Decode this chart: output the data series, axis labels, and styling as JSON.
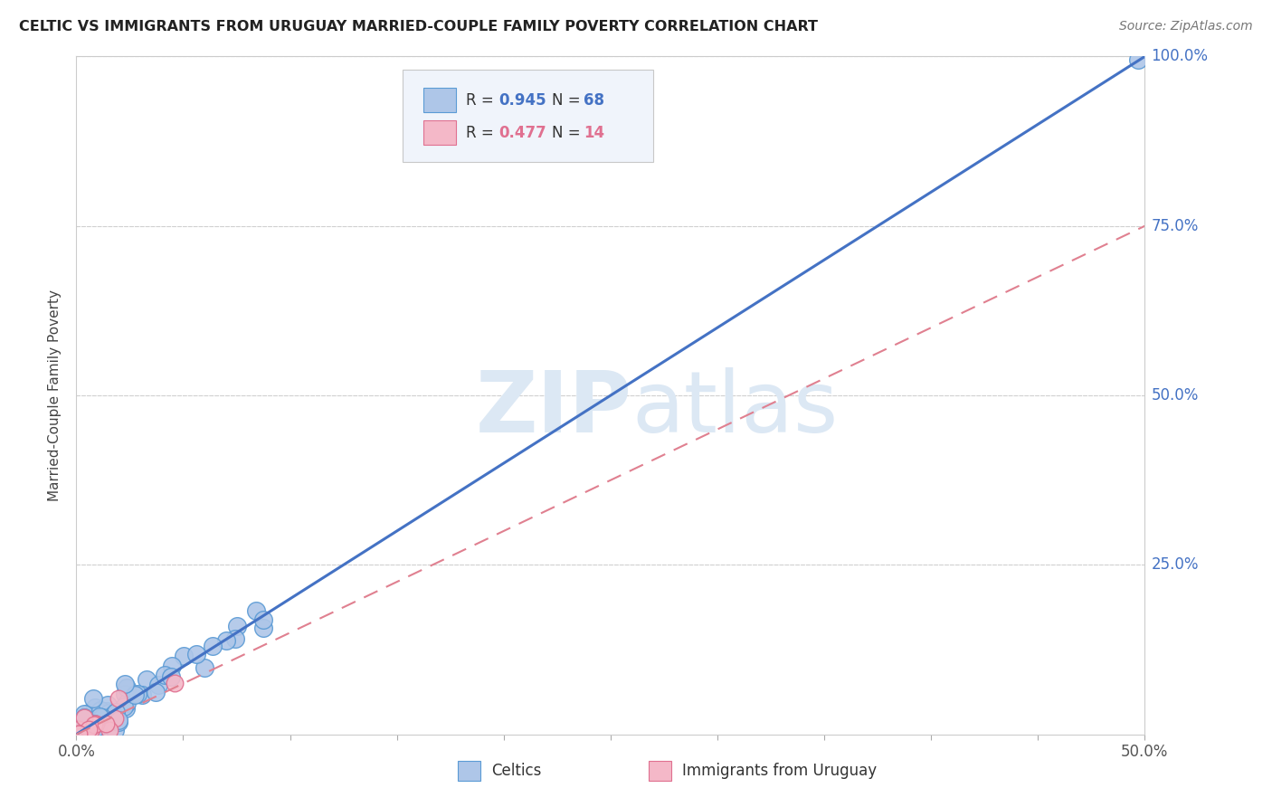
{
  "title": "CELTIC VS IMMIGRANTS FROM URUGUAY MARRIED-COUPLE FAMILY POVERTY CORRELATION CHART",
  "source": "Source: ZipAtlas.com",
  "ylabel": "Married-Couple Family Poverty",
  "xlim": [
    0.0,
    0.5
  ],
  "ylim": [
    0.0,
    1.0
  ],
  "xticks": [
    0.0,
    0.05,
    0.1,
    0.15,
    0.2,
    0.25,
    0.3,
    0.35,
    0.4,
    0.45,
    0.5
  ],
  "xticklabels": [
    "0.0%",
    "",
    "",
    "",
    "",
    "",
    "",
    "",
    "",
    "",
    "50.0%"
  ],
  "yticks": [
    0.0,
    0.25,
    0.5,
    0.75,
    1.0
  ],
  "yticklabels": [
    "",
    "25.0%",
    "50.0%",
    "75.0%",
    "100.0%"
  ],
  "celtic_R": 0.945,
  "celtic_N": 68,
  "uruguay_R": 0.477,
  "uruguay_N": 14,
  "celtic_color": "#aec6e8",
  "celtic_edge_color": "#5b9bd5",
  "uruguay_color": "#f4b8c8",
  "uruguay_edge_color": "#e07090",
  "celtic_line_color": "#4472c4",
  "uruguay_line_color": "#e08090",
  "watermark_color": "#dce8f4",
  "grid_color": "#d0d0d0",
  "background_color": "#ffffff",
  "legend_box_color": "#f0f4fb",
  "legend_border_color": "#c8c8c8",
  "number_color_blue": "#4472c4",
  "number_color_pink": "#e07090",
  "label_color": "#555555",
  "title_color": "#222222",
  "ytick_color": "#4472c4"
}
